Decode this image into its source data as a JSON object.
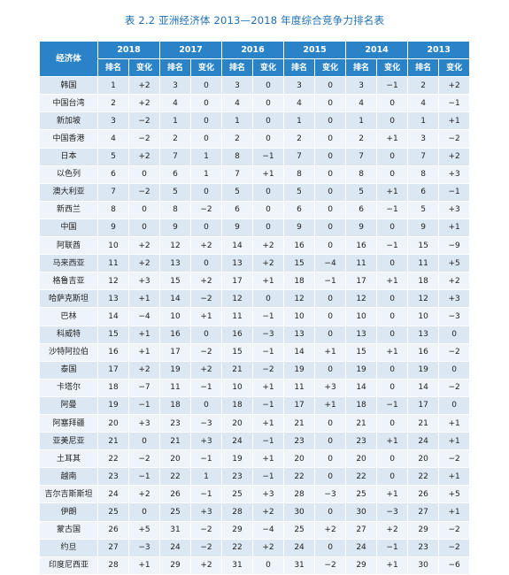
{
  "title": "表 2.2   亚洲经济体 2013—2018 年度综合竞争力排名表",
  "header": {
    "economy_label": "经济体",
    "years": [
      "2018",
      "2017",
      "2016",
      "2015",
      "2014",
      "2013"
    ],
    "rank_label": "排名",
    "change_label": "变化"
  },
  "rows": [
    {
      "name": "韩国",
      "vals": [
        "1",
        "+2",
        "3",
        "0",
        "3",
        "0",
        "3",
        "0",
        "3",
        "−1",
        "2",
        "+2"
      ]
    },
    {
      "name": "中国台湾",
      "vals": [
        "2",
        "+2",
        "4",
        "0",
        "4",
        "0",
        "4",
        "0",
        "4",
        "0",
        "4",
        "−1"
      ]
    },
    {
      "name": "新加坡",
      "vals": [
        "3",
        "−2",
        "1",
        "0",
        "1",
        "0",
        "1",
        "0",
        "1",
        "0",
        "1",
        "+1"
      ]
    },
    {
      "name": "中国香港",
      "vals": [
        "4",
        "−2",
        "2",
        "0",
        "2",
        "0",
        "2",
        "0",
        "2",
        "+1",
        "3",
        "−2"
      ]
    },
    {
      "name": "日本",
      "vals": [
        "5",
        "+2",
        "7",
        "1",
        "8",
        "−1",
        "7",
        "0",
        "7",
        "0",
        "7",
        "+2"
      ]
    },
    {
      "name": "以色列",
      "vals": [
        "6",
        "0",
        "6",
        "1",
        "7",
        "+1",
        "8",
        "0",
        "8",
        "0",
        "8",
        "+3"
      ]
    },
    {
      "name": "澳大利亚",
      "vals": [
        "7",
        "−2",
        "5",
        "0",
        "5",
        "0",
        "5",
        "0",
        "5",
        "+1",
        "6",
        "−1"
      ]
    },
    {
      "name": "新西兰",
      "vals": [
        "8",
        "0",
        "8",
        "−2",
        "6",
        "0",
        "6",
        "0",
        "6",
        "−1",
        "5",
        "+3"
      ]
    },
    {
      "name": "中国",
      "vals": [
        "9",
        "0",
        "9",
        "0",
        "9",
        "0",
        "9",
        "0",
        "9",
        "0",
        "9",
        "+1"
      ]
    },
    {
      "name": "阿联酋",
      "vals": [
        "10",
        "+2",
        "12",
        "+2",
        "14",
        "+2",
        "16",
        "0",
        "16",
        "−1",
        "15",
        "−9"
      ]
    },
    {
      "name": "马来西亚",
      "vals": [
        "11",
        "+2",
        "13",
        "0",
        "13",
        "+2",
        "15",
        "−4",
        "11",
        "0",
        "11",
        "+5"
      ]
    },
    {
      "name": "格鲁吉亚",
      "vals": [
        "12",
        "+3",
        "15",
        "+2",
        "17",
        "+1",
        "18",
        "−1",
        "17",
        "+1",
        "18",
        "+2"
      ]
    },
    {
      "name": "哈萨克斯坦",
      "vals": [
        "13",
        "+1",
        "14",
        "−2",
        "12",
        "0",
        "12",
        "0",
        "12",
        "0",
        "12",
        "+3"
      ]
    },
    {
      "name": "巴林",
      "vals": [
        "14",
        "−4",
        "10",
        "+1",
        "11",
        "−1",
        "10",
        "0",
        "10",
        "0",
        "10",
        "−3"
      ]
    },
    {
      "name": "科威特",
      "vals": [
        "15",
        "+1",
        "16",
        "0",
        "16",
        "−3",
        "13",
        "0",
        "13",
        "0",
        "13",
        "0"
      ]
    },
    {
      "name": "沙特阿拉伯",
      "vals": [
        "16",
        "+1",
        "17",
        "−2",
        "15",
        "−1",
        "14",
        "+1",
        "15",
        "+1",
        "16",
        "−2"
      ]
    },
    {
      "name": "泰国",
      "vals": [
        "17",
        "+2",
        "19",
        "+2",
        "21",
        "−2",
        "19",
        "0",
        "19",
        "0",
        "19",
        "0"
      ]
    },
    {
      "name": "卡塔尔",
      "vals": [
        "18",
        "−7",
        "11",
        "−1",
        "10",
        "+1",
        "11",
        "+3",
        "14",
        "0",
        "14",
        "−2"
      ]
    },
    {
      "name": "阿曼",
      "vals": [
        "19",
        "−1",
        "18",
        "0",
        "18",
        "−1",
        "17",
        "+1",
        "18",
        "−1",
        "17",
        "0"
      ]
    },
    {
      "name": "阿塞拜疆",
      "vals": [
        "20",
        "+3",
        "23",
        "−3",
        "20",
        "+1",
        "21",
        "0",
        "21",
        "0",
        "21",
        "+1"
      ]
    },
    {
      "name": "亚美尼亚",
      "vals": [
        "21",
        "0",
        "21",
        "+3",
        "24",
        "−1",
        "23",
        "0",
        "23",
        "+1",
        "24",
        "+1"
      ]
    },
    {
      "name": "土耳其",
      "vals": [
        "22",
        "−2",
        "20",
        "−1",
        "19",
        "+1",
        "20",
        "0",
        "20",
        "0",
        "20",
        "−2"
      ]
    },
    {
      "name": "越南",
      "vals": [
        "23",
        "−1",
        "22",
        "1",
        "23",
        "−1",
        "22",
        "0",
        "22",
        "0",
        "22",
        "+1"
      ]
    },
    {
      "name": "吉尔吉斯斯坦",
      "vals": [
        "24",
        "+2",
        "26",
        "−1",
        "25",
        "+3",
        "28",
        "−3",
        "25",
        "+1",
        "26",
        "+5"
      ]
    },
    {
      "name": "伊朗",
      "vals": [
        "25",
        "0",
        "25",
        "+3",
        "28",
        "+2",
        "30",
        "0",
        "30",
        "−3",
        "27",
        "+1"
      ]
    },
    {
      "name": "蒙古国",
      "vals": [
        "26",
        "+5",
        "31",
        "−2",
        "29",
        "−4",
        "25",
        "+2",
        "27",
        "+2",
        "29",
        "−2"
      ]
    },
    {
      "name": "约旦",
      "vals": [
        "27",
        "−3",
        "24",
        "−2",
        "22",
        "+2",
        "24",
        "0",
        "24",
        "−1",
        "23",
        "−2"
      ]
    },
    {
      "name": "印度尼西亚",
      "vals": [
        "28",
        "+1",
        "29",
        "+2",
        "31",
        "0",
        "31",
        "−2",
        "29",
        "+1",
        "30",
        "−6"
      ]
    }
  ]
}
